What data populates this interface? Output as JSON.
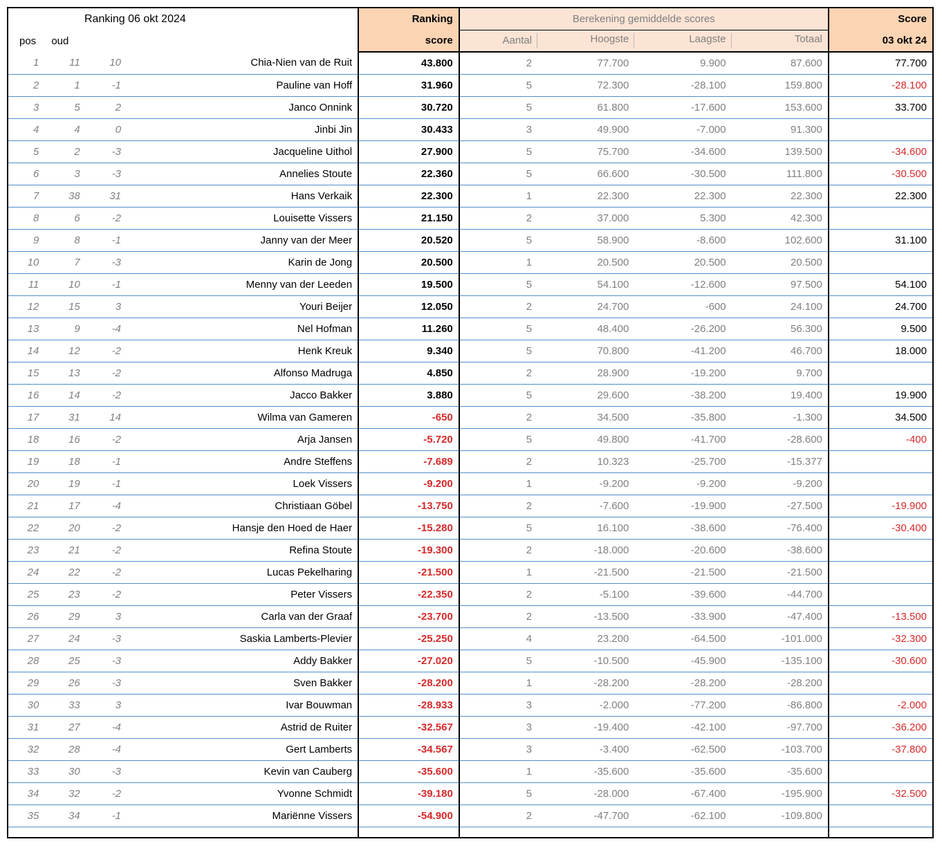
{
  "header": {
    "title": "Ranking  06 okt 2024",
    "pos": "pos",
    "oud": "oud",
    "ranking_line1": "Ranking",
    "ranking_line2": "score",
    "calc_group": "Berekening gemiddelde scores",
    "aantal": "Aantal",
    "hoogste": "Hoogste",
    "laagste": "Laagste",
    "totaal": "Totaal",
    "score_line1": "Score",
    "score_line2": "03 okt 24"
  },
  "colors": {
    "header_dark_bg": "#fbd4b3",
    "header_light_bg": "#fce4d5",
    "gray_text": "#808080",
    "row_border": "#4f8ecb",
    "negative": "#d62929"
  },
  "columns": [
    "pos",
    "oud",
    "diff",
    "name",
    "ranking_score",
    "aantal",
    "hoogste",
    "laagste",
    "totaal",
    "score"
  ],
  "rows": [
    {
      "pos": "1",
      "oud": "11",
      "diff": "10",
      "name": "Chia-Nien van de Ruit",
      "ranking_score": "43.800",
      "aantal": "2",
      "hoogste": "77.700",
      "laagste": "9.900",
      "totaal": "87.600",
      "score": "77.700"
    },
    {
      "pos": "2",
      "oud": "1",
      "diff": "-1",
      "name": "Pauline van Hoff",
      "ranking_score": "31.960",
      "aantal": "5",
      "hoogste": "72.300",
      "laagste": "-28.100",
      "totaal": "159.800",
      "score": "-28.100",
      "score_neg": true
    },
    {
      "pos": "3",
      "oud": "5",
      "diff": "2",
      "name": "Janco Onnink",
      "ranking_score": "30.720",
      "aantal": "5",
      "hoogste": "61.800",
      "laagste": "-17.600",
      "totaal": "153.600",
      "score": "33.700"
    },
    {
      "pos": "4",
      "oud": "4",
      "diff": "0",
      "name": "Jinbi Jin",
      "ranking_score": "30.433",
      "aantal": "3",
      "hoogste": "49.900",
      "laagste": "-7.000",
      "totaal": "91.300",
      "score": ""
    },
    {
      "pos": "5",
      "oud": "2",
      "diff": "-3",
      "name": "Jacqueline Uithol",
      "ranking_score": "27.900",
      "aantal": "5",
      "hoogste": "75.700",
      "laagste": "-34.600",
      "totaal": "139.500",
      "score": "-34.600",
      "score_neg": true
    },
    {
      "pos": "6",
      "oud": "3",
      "diff": "-3",
      "name": "Annelies Stoute",
      "ranking_score": "22.360",
      "aantal": "5",
      "hoogste": "66.600",
      "laagste": "-30.500",
      "totaal": "111.800",
      "score": "-30.500",
      "score_neg": true
    },
    {
      "pos": "7",
      "oud": "38",
      "diff": "31",
      "name": "Hans Verkaik",
      "ranking_score": "22.300",
      "aantal": "1",
      "hoogste": "22.300",
      "laagste": "22.300",
      "totaal": "22.300",
      "score": "22.300"
    },
    {
      "pos": "8",
      "oud": "6",
      "diff": "-2",
      "name": "Louisette Vissers",
      "ranking_score": "21.150",
      "aantal": "2",
      "hoogste": "37.000",
      "laagste": "5.300",
      "totaal": "42.300",
      "score": ""
    },
    {
      "pos": "9",
      "oud": "8",
      "diff": "-1",
      "name": "Janny van der Meer",
      "ranking_score": "20.520",
      "aantal": "5",
      "hoogste": "58.900",
      "laagste": "-8.600",
      "totaal": "102.600",
      "score": "31.100"
    },
    {
      "pos": "10",
      "oud": "7",
      "diff": "-3",
      "name": "Karin de Jong",
      "ranking_score": "20.500",
      "aantal": "1",
      "hoogste": "20.500",
      "laagste": "20.500",
      "totaal": "20.500",
      "score": ""
    },
    {
      "pos": "11",
      "oud": "10",
      "diff": "-1",
      "name": "Menny van der Leeden",
      "ranking_score": "19.500",
      "aantal": "5",
      "hoogste": "54.100",
      "laagste": "-12.600",
      "totaal": "97.500",
      "score": "54.100"
    },
    {
      "pos": "12",
      "oud": "15",
      "diff": "3",
      "name": "Youri Beijer",
      "ranking_score": "12.050",
      "aantal": "2",
      "hoogste": "24.700",
      "laagste": "-600",
      "totaal": "24.100",
      "score": "24.700"
    },
    {
      "pos": "13",
      "oud": "9",
      "diff": "-4",
      "name": "Nel Hofman",
      "ranking_score": "11.260",
      "aantal": "5",
      "hoogste": "48.400",
      "laagste": "-26.200",
      "totaal": "56.300",
      "score": "9.500"
    },
    {
      "pos": "14",
      "oud": "12",
      "diff": "-2",
      "name": "Henk Kreuk",
      "ranking_score": "9.340",
      "aantal": "5",
      "hoogste": "70.800",
      "laagste": "-41.200",
      "totaal": "46.700",
      "score": "18.000"
    },
    {
      "pos": "15",
      "oud": "13",
      "diff": "-2",
      "name": "Alfonso Madruga",
      "ranking_score": "4.850",
      "aantal": "2",
      "hoogste": "28.900",
      "laagste": "-19.200",
      "totaal": "9.700",
      "score": ""
    },
    {
      "pos": "16",
      "oud": "14",
      "diff": "-2",
      "name": "Jacco Bakker",
      "ranking_score": "3.880",
      "aantal": "5",
      "hoogste": "29.600",
      "laagste": "-38.200",
      "totaal": "19.400",
      "score": "19.900"
    },
    {
      "pos": "17",
      "oud": "31",
      "diff": "14",
      "name": "Wilma van Gameren",
      "ranking_score": "-650",
      "ranking_neg": true,
      "aantal": "2",
      "hoogste": "34.500",
      "laagste": "-35.800",
      "totaal": "-1.300",
      "score": "34.500"
    },
    {
      "pos": "18",
      "oud": "16",
      "diff": "-2",
      "name": "Arja Jansen",
      "ranking_score": "-5.720",
      "ranking_neg": true,
      "aantal": "5",
      "hoogste": "49.800",
      "laagste": "-41.700",
      "totaal": "-28.600",
      "score": "-400",
      "score_neg": true
    },
    {
      "pos": "19",
      "oud": "18",
      "diff": "-1",
      "name": "Andre Steffens",
      "ranking_score": "-7.689",
      "ranking_neg": true,
      "aantal": "2",
      "hoogste": "10.323",
      "laagste": "-25.700",
      "totaal": "-15.377",
      "score": ""
    },
    {
      "pos": "20",
      "oud": "19",
      "diff": "-1",
      "name": "Loek Vissers",
      "ranking_score": "-9.200",
      "ranking_neg": true,
      "aantal": "1",
      "hoogste": "-9.200",
      "laagste": "-9.200",
      "totaal": "-9.200",
      "score": ""
    },
    {
      "pos": "21",
      "oud": "17",
      "diff": "-4",
      "name": "Christiaan Göbel",
      "ranking_score": "-13.750",
      "ranking_neg": true,
      "aantal": "2",
      "hoogste": "-7.600",
      "laagste": "-19.900",
      "totaal": "-27.500",
      "score": "-19.900",
      "score_neg": true
    },
    {
      "pos": "22",
      "oud": "20",
      "diff": "-2",
      "name": "Hansje den Hoed de Haer",
      "ranking_score": "-15.280",
      "ranking_neg": true,
      "aantal": "5",
      "hoogste": "16.100",
      "laagste": "-38.600",
      "totaal": "-76.400",
      "score": "-30.400",
      "score_neg": true
    },
    {
      "pos": "23",
      "oud": "21",
      "diff": "-2",
      "name": "Refina Stoute",
      "ranking_score": "-19.300",
      "ranking_neg": true,
      "aantal": "2",
      "hoogste": "-18.000",
      "laagste": "-20.600",
      "totaal": "-38.600",
      "score": ""
    },
    {
      "pos": "24",
      "oud": "22",
      "diff": "-2",
      "name": "Lucas Pekelharing",
      "ranking_score": "-21.500",
      "ranking_neg": true,
      "aantal": "1",
      "hoogste": "-21.500",
      "laagste": "-21.500",
      "totaal": "-21.500",
      "score": ""
    },
    {
      "pos": "25",
      "oud": "23",
      "diff": "-2",
      "name": "Peter Vissers",
      "ranking_score": "-22.350",
      "ranking_neg": true,
      "aantal": "2",
      "hoogste": "-5.100",
      "laagste": "-39.600",
      "totaal": "-44.700",
      "score": ""
    },
    {
      "pos": "26",
      "oud": "29",
      "diff": "3",
      "name": "Carla van der Graaf",
      "ranking_score": "-23.700",
      "ranking_neg": true,
      "aantal": "2",
      "hoogste": "-13.500",
      "laagste": "-33.900",
      "totaal": "-47.400",
      "score": "-13.500",
      "score_neg": true
    },
    {
      "pos": "27",
      "oud": "24",
      "diff": "-3",
      "name": "Saskia Lamberts-Plevier",
      "ranking_score": "-25.250",
      "ranking_neg": true,
      "aantal": "4",
      "hoogste": "23.200",
      "laagste": "-64.500",
      "totaal": "-101.000",
      "score": "-32.300",
      "score_neg": true
    },
    {
      "pos": "28",
      "oud": "25",
      "diff": "-3",
      "name": "Addy Bakker",
      "ranking_score": "-27.020",
      "ranking_neg": true,
      "aantal": "5",
      "hoogste": "-10.500",
      "laagste": "-45.900",
      "totaal": "-135.100",
      "score": "-30.600",
      "score_neg": true
    },
    {
      "pos": "29",
      "oud": "26",
      "diff": "-3",
      "name": "Sven Bakker",
      "ranking_score": "-28.200",
      "ranking_neg": true,
      "aantal": "1",
      "hoogste": "-28.200",
      "laagste": "-28.200",
      "totaal": "-28.200",
      "score": ""
    },
    {
      "pos": "30",
      "oud": "33",
      "diff": "3",
      "name": "Ivar Bouwman",
      "ranking_score": "-28.933",
      "ranking_neg": true,
      "aantal": "3",
      "hoogste": "-2.000",
      "laagste": "-77.200",
      "totaal": "-86.800",
      "score": "-2.000",
      "score_neg": true
    },
    {
      "pos": "31",
      "oud": "27",
      "diff": "-4",
      "name": "Astrid de Ruiter",
      "ranking_score": "-32.567",
      "ranking_neg": true,
      "aantal": "3",
      "hoogste": "-19.400",
      "laagste": "-42.100",
      "totaal": "-97.700",
      "score": "-36.200",
      "score_neg": true
    },
    {
      "pos": "32",
      "oud": "28",
      "diff": "-4",
      "name": "Gert Lamberts",
      "ranking_score": "-34.567",
      "ranking_neg": true,
      "aantal": "3",
      "hoogste": "-3.400",
      "laagste": "-62.500",
      "totaal": "-103.700",
      "score": "-37.800",
      "score_neg": true
    },
    {
      "pos": "33",
      "oud": "30",
      "diff": "-3",
      "name": "Kevin van Cauberg",
      "ranking_score": "-35.600",
      "ranking_neg": true,
      "aantal": "1",
      "hoogste": "-35.600",
      "laagste": "-35.600",
      "totaal": "-35.600",
      "score": ""
    },
    {
      "pos": "34",
      "oud": "32",
      "diff": "-2",
      "name": "Yvonne Schmidt",
      "ranking_score": "-39.180",
      "ranking_neg": true,
      "aantal": "5",
      "hoogste": "-28.000",
      "laagste": "-67.400",
      "totaal": "-195.900",
      "score": "-32.500",
      "score_neg": true
    },
    {
      "pos": "35",
      "oud": "34",
      "diff": "-1",
      "name": "Mariënne Vissers",
      "ranking_score": "-54.900",
      "ranking_neg": true,
      "aantal": "2",
      "hoogste": "-47.700",
      "laagste": "-62.100",
      "totaal": "-109.800",
      "score": ""
    }
  ]
}
